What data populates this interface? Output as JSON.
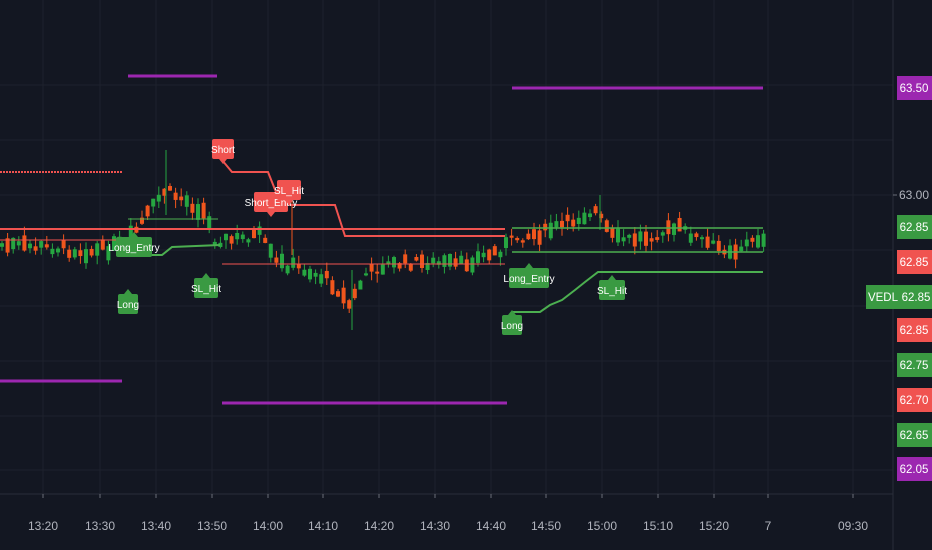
{
  "chart_data": {
    "type": "candlestick",
    "symbol": "VEDL",
    "colors": {
      "background": "#131722",
      "grid": "#1e222d",
      "up": "#26a641",
      "down": "#f0561d",
      "green_tag": "#3a9a42",
      "red_tag": "#f05350",
      "purple": "#9c27b0",
      "stop_line_short": "#f05350",
      "stop_line_long": "#4caf50"
    },
    "x_axis": {
      "ticks": [
        "13:20",
        "13:30",
        "13:40",
        "13:50",
        "14:00",
        "14:10",
        "14:20",
        "14:30",
        "14:40",
        "14:50",
        "15:00",
        "15:10",
        "15:20",
        "7",
        "09:30"
      ]
    },
    "y_axis": {
      "ticks": [
        "63.00"
      ],
      "price_tags": [
        {
          "label": "63.50",
          "color": "purple"
        },
        {
          "label": "63.00",
          "color": "none"
        },
        {
          "label": "62.85",
          "color": "green"
        },
        {
          "label": "62.85",
          "color": "red"
        },
        {
          "label": "VEDL",
          "color": "green",
          "symbol": true
        },
        {
          "label": "62.85",
          "color": "green",
          "symbol_value": true
        },
        {
          "label": "62.85",
          "color": "red"
        },
        {
          "label": "62.75",
          "color": "green"
        },
        {
          "label": "62.70",
          "color": "red"
        },
        {
          "label": "62.65",
          "color": "green"
        },
        {
          "label": "62.05",
          "color": "purple"
        }
      ]
    },
    "signals": [
      {
        "label": "Short",
        "color": "red"
      },
      {
        "label": "Short_Entry",
        "color": "red"
      },
      {
        "label": "SL_Hit",
        "color": "red"
      },
      {
        "label": "Long_Entry",
        "color": "green"
      },
      {
        "label": "Long",
        "color": "green"
      },
      {
        "label": "SL_Hit",
        "color": "green"
      },
      {
        "label": "Long_Entry",
        "color": "green"
      },
      {
        "label": "Long",
        "color": "green"
      },
      {
        "label": "SL_Hit",
        "color": "green"
      }
    ]
  }
}
